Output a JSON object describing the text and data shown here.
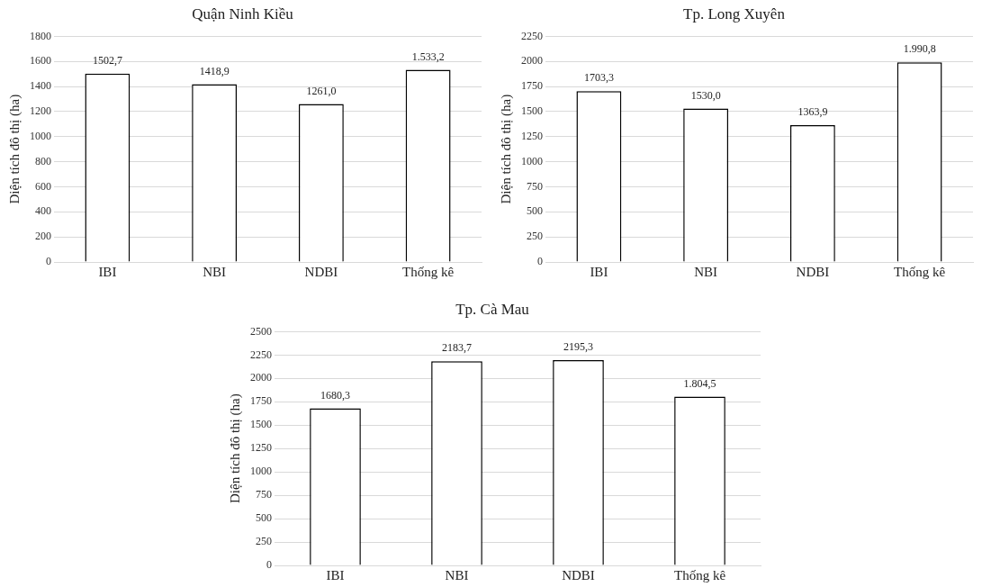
{
  "chart_data": [
    {
      "type": "bar",
      "title": "Quận Ninh Kiều",
      "ylabel": "Diện tích đô thị (ha)",
      "categories": [
        "IBI",
        "NBI",
        "NDBI",
        "Thống kê"
      ],
      "values": [
        1502.7,
        1418.9,
        1261.0,
        1533.2
      ],
      "value_labels": [
        "1502,7",
        "1418,9",
        "1261,0",
        "1.533,2"
      ],
      "color": "#ffffff",
      "ylim": [
        0,
        1800
      ],
      "yticks": [
        0,
        200,
        400,
        600,
        800,
        1000,
        1200,
        1400,
        1600,
        1800
      ],
      "grid": "y"
    },
    {
      "type": "bar",
      "title": "Tp. Long Xuyên",
      "ylabel": "Diện tích đô thị (ha)",
      "categories": [
        "IBI",
        "NBI",
        "NDBI",
        "Thống kê"
      ],
      "values": [
        1703.3,
        1530.0,
        1363.9,
        1990.8
      ],
      "value_labels": [
        "1703,3",
        "1530,0",
        "1363,9",
        "1.990,8"
      ],
      "color": "#ffffff",
      "ylim": [
        0,
        2250
      ],
      "yticks": [
        0,
        250,
        500,
        750,
        1000,
        1250,
        1500,
        1750,
        2000,
        2250
      ],
      "grid": "y"
    },
    {
      "type": "bar",
      "title": "Tp. Cà Mau",
      "ylabel": "Diện tích đô thị (ha)",
      "categories": [
        "IBI",
        "NBI",
        "NDBI",
        "Thống kê"
      ],
      "values": [
        1680.3,
        2183.7,
        2195.3,
        1804.5
      ],
      "value_labels": [
        "1680,3",
        "2183,7",
        "2195,3",
        "1.804,5"
      ],
      "color": "#ffffff",
      "ylim": [
        0,
        2500
      ],
      "yticks": [
        0,
        250,
        500,
        750,
        1000,
        1250,
        1500,
        1750,
        2000,
        2250,
        2500
      ],
      "grid": "y"
    }
  ]
}
